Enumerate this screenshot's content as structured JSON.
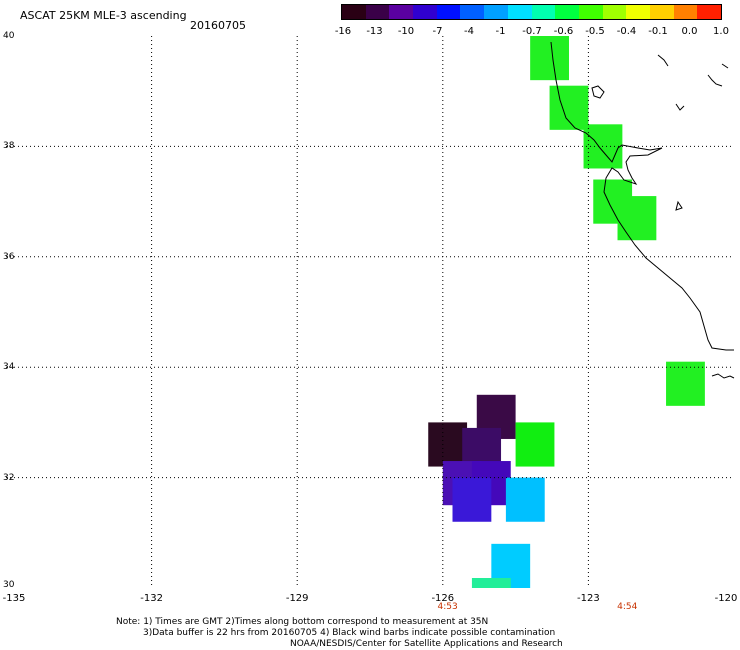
{
  "header": {
    "title": "ASCAT 25KM MLE-3 ascending",
    "date": "20160705"
  },
  "colorbar": {
    "colors": [
      "#2a0014",
      "#3a0048",
      "#5a00a0",
      "#3000d0",
      "#0010ff",
      "#0060ff",
      "#00a0ff",
      "#00e0ff",
      "#00ffb0",
      "#00ff40",
      "#40ff00",
      "#a0ff00",
      "#f0ff00",
      "#ffd000",
      "#ff8000",
      "#ff2000"
    ],
    "labels": [
      "-16",
      "-13",
      "-10",
      "-7",
      "-4",
      "-1",
      "-0.7",
      "-0.6",
      "-0.5",
      "-0.4",
      "-0.1",
      "0.0",
      "1.0"
    ]
  },
  "map": {
    "lon_range": [
      -135,
      -120
    ],
    "lat_range": [
      30,
      40
    ],
    "x_labels": [
      "-135",
      "-132",
      "-129",
      "-126",
      "-123",
      "-120"
    ],
    "y_labels": [
      "40",
      "38",
      "36",
      "34",
      "32",
      "30"
    ],
    "pass_times": [
      {
        "label": "4:53",
        "lon": -125.9
      },
      {
        "label": "4:54",
        "lon": -122.2
      }
    ],
    "cells": [
      {
        "lon": -123.8,
        "lat": 39.6,
        "color": "#22f022"
      },
      {
        "lon": -123.4,
        "lat": 38.7,
        "color": "#22f022"
      },
      {
        "lon": -122.7,
        "lat": 38.0,
        "color": "#22f022"
      },
      {
        "lon": -122.5,
        "lat": 37.0,
        "color": "#22f022"
      },
      {
        "lon": -122.0,
        "lat": 36.7,
        "color": "#22f022"
      },
      {
        "lon": -121.0,
        "lat": 33.7,
        "color": "#22f022"
      },
      {
        "lon": -124.9,
        "lat": 33.1,
        "color": "#3a0a46"
      },
      {
        "lon": -125.9,
        "lat": 32.6,
        "color": "#2a0a20"
      },
      {
        "lon": -125.2,
        "lat": 32.5,
        "color": "#3c0c66"
      },
      {
        "lon": -124.1,
        "lat": 32.6,
        "color": "#11ee11"
      },
      {
        "lon": -125.6,
        "lat": 31.9,
        "color": "#4b10b4"
      },
      {
        "lon": -125.0,
        "lat": 31.9,
        "color": "#4408ba"
      },
      {
        "lon": -124.3,
        "lat": 31.6,
        "color": "#00c0ff"
      },
      {
        "lon": -125.4,
        "lat": 31.6,
        "color": "#3a18d8"
      },
      {
        "lon": -124.6,
        "lat": 30.4,
        "color": "#00ccff"
      }
    ],
    "cell_size_deg": [
      0.8,
      0.8
    ],
    "bottom_strip": {
      "lon": -125.0,
      "lat": 30.0,
      "color": "#22ee99"
    }
  },
  "notes": [
    "Note: 1) Times are GMT 2)Times along bottom correspond to measurement at 35N",
    "3)Data buffer is 22 hrs from 20160705 4) Black wind barbs indicate possible contamination",
    "NOAA/NESDIS/Center for Satellite Applications and Research"
  ]
}
